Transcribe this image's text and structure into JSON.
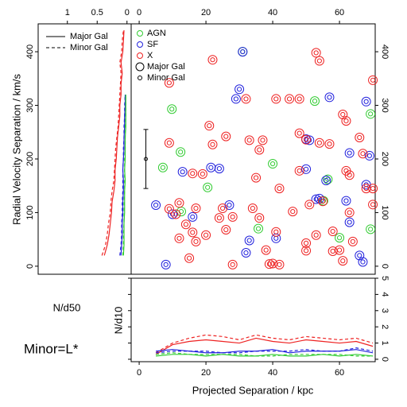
{
  "chart_data": [
    {
      "type": "profile",
      "xlabel": "N/d50",
      "ylabel": "Radial Velocity Separation / km/s",
      "xlim": [
        1.49,
        -0.07
      ],
      "xticks": [
        1,
        0.5,
        0
      ],
      "ylim": [
        -15,
        452
      ],
      "yticks": [
        0,
        100,
        200,
        300,
        400
      ],
      "legend": [
        {
          "label": "Major Gal",
          "dash": false
        },
        {
          "label": "Minor Gal",
          "dash": true
        }
      ],
      "y": [
        20,
        40,
        60,
        80,
        100,
        120,
        140,
        160,
        180,
        200,
        220,
        240,
        260,
        280,
        300,
        320,
        340,
        360,
        380,
        400,
        420,
        440
      ],
      "series": [
        {
          "color": "#ee2222",
          "dash": false,
          "values": [
            0.38,
            0.33,
            0.3,
            0.28,
            0.26,
            0.25,
            0.22,
            0.2,
            0.2,
            0.18,
            0.17,
            0.16,
            0.14,
            0.12,
            0.12,
            0.1,
            0.1,
            0.08,
            0.1,
            0.07,
            0.06,
            0.05
          ]
        },
        {
          "color": "#ee2222",
          "dash": true,
          "values": [
            0.42,
            0.36,
            0.33,
            0.31,
            0.28,
            0.27,
            0.25,
            0.22,
            0.21,
            0.2,
            0.19,
            0.17,
            0.15,
            0.14,
            0.13,
            0.12,
            0.11,
            0.1,
            0.12,
            0.09,
            0.08,
            0.06
          ]
        },
        {
          "color": "#2222dd",
          "dash": false,
          "values": [
            0.1,
            0.09,
            0.08,
            0.08,
            0.07,
            0.07,
            0.06,
            0.06,
            0.07,
            0.06,
            0.05,
            0.05,
            0.04,
            0.04,
            0.03,
            0.03,
            null,
            null,
            null,
            null,
            null,
            null
          ]
        },
        {
          "color": "#2222dd",
          "dash": true,
          "values": [
            0.12,
            0.1,
            0.09,
            0.09,
            0.08,
            0.08,
            0.07,
            0.07,
            0.07,
            0.06,
            0.06,
            0.05,
            0.05,
            0.04,
            0.04,
            0.03,
            null,
            null,
            null,
            null,
            null,
            null
          ]
        },
        {
          "color": "#33cc33",
          "dash": false,
          "values": [
            0.06,
            0.05,
            0.05,
            0.05,
            0.04,
            0.04,
            0.04,
            0.03,
            0.04,
            0.03,
            0.03,
            0.03,
            0.02,
            0.02,
            0.02,
            0.02,
            null,
            null,
            null,
            null,
            null,
            null
          ]
        },
        {
          "color": "#33cc33",
          "dash": true,
          "values": [
            0.07,
            0.06,
            0.06,
            0.05,
            0.05,
            0.05,
            0.04,
            0.04,
            0.04,
            0.04,
            0.03,
            0.03,
            0.03,
            0.02,
            0.02,
            0.02,
            null,
            null,
            null,
            null,
            null,
            null
          ]
        }
      ]
    },
    {
      "type": "scatter",
      "xlim": [
        -2.4,
        70.7
      ],
      "xticks": [
        0,
        20,
        40,
        60
      ],
      "ylim": [
        -15,
        452
      ],
      "yticks": [
        0,
        100,
        200,
        300,
        400
      ],
      "size_legend": [
        "Major Gal",
        "Minor Gal"
      ],
      "error_bar": {
        "x": 2,
        "y": 200,
        "yerr": 55
      },
      "series": [
        {
          "name": "AGN",
          "color": "#33cc33",
          "x": [
            9.8,
            12.4,
            7.1,
            20.5,
            12.6,
            31.0,
            35.7,
            40.0,
            52.6,
            69.3,
            55.2,
            56.5,
            60.0,
            69.3
          ],
          "y": [
            293,
            213,
            184,
            147,
            102,
            400,
            70,
            191,
            308,
            284,
            122,
            162,
            53,
            69
          ]
        },
        {
          "name": "SF",
          "color": "#2222dd",
          "x": [
            31,
            30,
            29,
            21.5,
            24,
            13,
            10,
            16,
            27,
            5,
            8,
            33,
            41,
            32,
            50,
            51,
            50,
            54,
            56,
            57,
            63,
            62,
            63,
            66,
            67,
            68,
            69,
            68,
            53
          ],
          "y": [
            400,
            330,
            312,
            184,
            182,
            176,
            97,
            92,
            114,
            114,
            3,
            48,
            52,
            25,
            237,
            235,
            181,
            126,
            160,
            315,
            211,
            122,
            82,
            20,
            8,
            307,
            206,
            152,
            125
          ]
        },
        {
          "name": "X",
          "color": "#ee2222",
          "x": [
            22,
            9,
            53,
            54,
            70,
            48,
            32,
            41,
            54,
            57,
            21,
            26,
            22,
            33,
            37,
            36,
            48,
            50,
            61,
            62,
            66,
            67,
            9,
            16,
            19,
            12,
            9,
            11,
            17,
            25,
            24,
            14,
            16,
            17,
            15,
            12,
            20,
            26,
            28,
            35,
            42,
            46,
            51,
            55,
            34,
            36,
            41,
            38,
            39,
            40,
            42,
            28,
            50,
            50,
            53,
            58,
            58,
            64,
            61,
            60,
            63,
            62,
            68,
            70,
            70,
            63,
            48,
            45
          ],
          "y": [
            385,
            342,
            398,
            383,
            347,
            312,
            312,
            312,
            230,
            228,
            262,
            242,
            227,
            235,
            235,
            217,
            248,
            236,
            283,
            271,
            240,
            210,
            230,
            173,
            172,
            118,
            107,
            97,
            108,
            108,
            90,
            78,
            63,
            46,
            15,
            52,
            58,
            68,
            92,
            165,
            145,
            102,
            115,
            121,
            108,
            90,
            64,
            30,
            4,
            5,
            3,
            3,
            43,
            29,
            58,
            65,
            28,
            46,
            10,
            30,
            170,
            178,
            145,
            145,
            115,
            100,
            178,
            312
          ]
        }
      ]
    },
    {
      "type": "line",
      "xlabel": "Projected Separation / kpc",
      "ylabel": "N/d10",
      "annotation": "Minor=L*",
      "xlim": [
        -2.4,
        70.7
      ],
      "xticks": [
        0,
        20,
        40,
        60
      ],
      "ylim": [
        -0.15,
        5
      ],
      "yticks": [
        0,
        1,
        2,
        3,
        4,
        5
      ],
      "x": [
        5,
        10,
        15,
        20,
        25,
        30,
        35,
        40,
        45,
        50,
        55,
        60,
        65,
        70
      ],
      "series": [
        {
          "color": "#ee2222",
          "dash": false,
          "values": [
            0.3,
            0.9,
            1.1,
            1.2,
            1.1,
            1.0,
            1.3,
            1.1,
            1.0,
            1.2,
            1.1,
            1.0,
            1.1,
            0.8
          ]
        },
        {
          "color": "#ee2222",
          "dash": true,
          "values": [
            0.4,
            1.0,
            1.3,
            1.5,
            1.4,
            1.2,
            1.5,
            1.3,
            1.2,
            1.4,
            1.3,
            1.2,
            1.3,
            1.0
          ]
        },
        {
          "color": "#2222dd",
          "dash": false,
          "values": [
            0.5,
            0.6,
            0.5,
            0.4,
            0.4,
            0.5,
            0.5,
            0.6,
            0.4,
            0.5,
            0.5,
            0.5,
            0.6,
            0.4
          ]
        },
        {
          "color": "#2222dd",
          "dash": true,
          "values": [
            0.4,
            0.5,
            0.5,
            0.5,
            0.4,
            0.4,
            0.5,
            0.5,
            0.5,
            0.6,
            0.5,
            0.5,
            0.7,
            0.5
          ]
        },
        {
          "color": "#33cc33",
          "dash": false,
          "values": [
            0.2,
            0.3,
            0.3,
            0.2,
            0.3,
            0.2,
            0.2,
            0.3,
            0.2,
            0.2,
            0.3,
            0.2,
            0.3,
            0.2
          ]
        },
        {
          "color": "#33cc33",
          "dash": true,
          "values": [
            0.3,
            0.4,
            0.3,
            0.3,
            0.3,
            0.3,
            0.2,
            0.2,
            0.3,
            0.3,
            0.3,
            0.3,
            0.2,
            0.2
          ]
        }
      ]
    }
  ]
}
